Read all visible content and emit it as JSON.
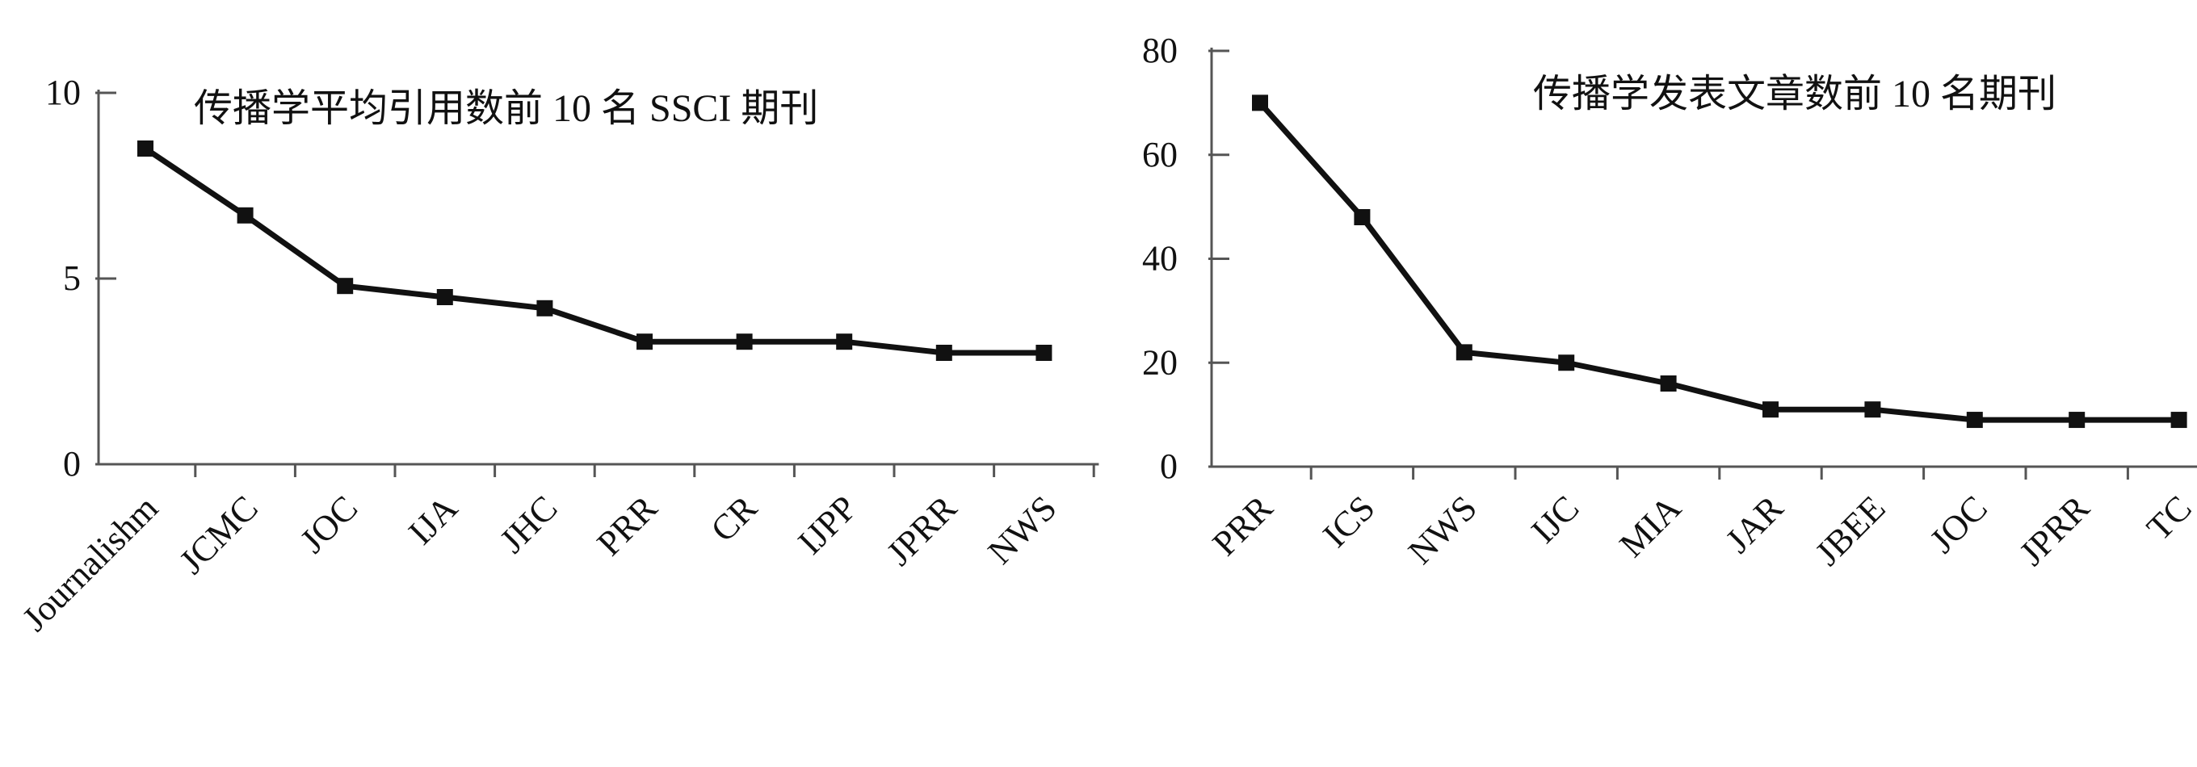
{
  "chart_data": [
    {
      "type": "line",
      "title": "传播学平均引用数前 10 名 SSCI 期刊",
      "categories": [
        "Journalishm",
        "JCMC",
        "JOC",
        "IJA",
        "JHC",
        "PRR",
        "CR",
        "IJPP",
        "JPRR",
        "NWS"
      ],
      "series": [
        {
          "values": [
            8.5,
            6.7,
            4.8,
            4.5,
            4.2,
            3.3,
            3.3,
            3.3,
            3.0,
            3.0
          ]
        }
      ],
      "ylim": [
        0,
        10
      ],
      "yticks": [
        0,
        5,
        10
      ],
      "xlabel": "",
      "ylabel": "",
      "grid": false,
      "color": "#111111"
    },
    {
      "type": "line",
      "title": "传播学发表文章数前 10 名期刊",
      "categories": [
        "PRR",
        "ICS",
        "NWS",
        "IJC",
        "MIA",
        "JAR",
        "JBEE",
        "JOC",
        "JPRR",
        "TC"
      ],
      "series": [
        {
          "values": [
            70,
            48,
            22,
            20,
            16,
            11,
            11,
            9,
            9,
            9
          ]
        }
      ],
      "ylim": [
        0,
        80
      ],
      "yticks": [
        0,
        20,
        40,
        60,
        80
      ],
      "xlabel": "",
      "ylabel": "",
      "grid": false,
      "color": "#111111"
    }
  ]
}
